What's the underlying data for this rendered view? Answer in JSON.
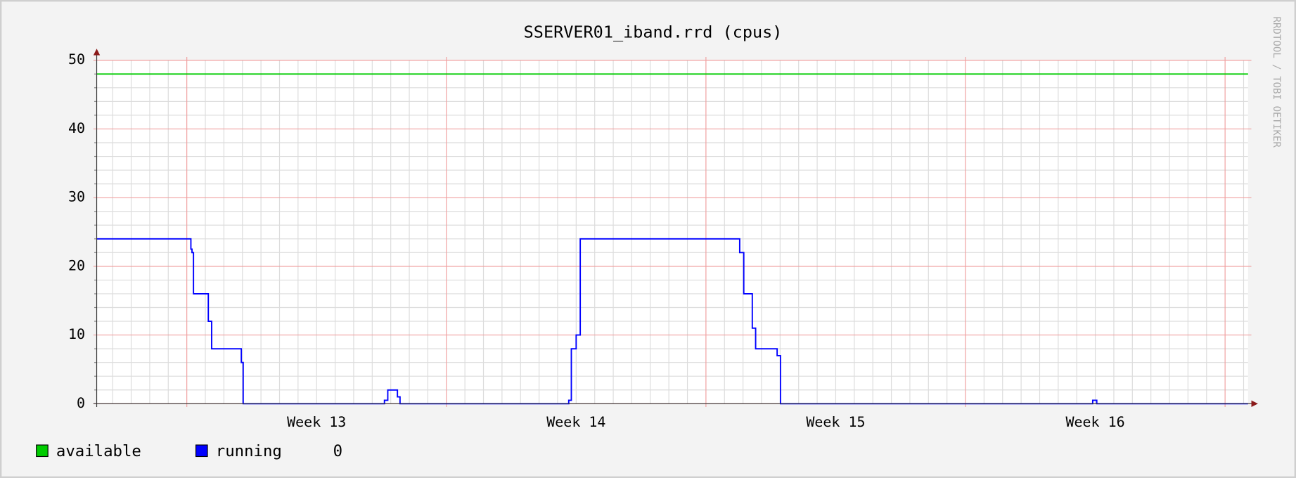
{
  "chart_data": {
    "type": "line",
    "title": "SSERVER01_iband.rrd (cpus)",
    "side_label": "RRDTOOL / TOBI OETIKER",
    "drawstyle": "steps-post",
    "xlim": [
      -2.43,
      28.62
    ],
    "ylim": [
      0,
      50
    ],
    "yticks": [
      0,
      10,
      20,
      30,
      40,
      50
    ],
    "yminorticks": [
      2,
      4,
      6,
      8,
      12,
      14,
      16,
      18,
      22,
      24,
      26,
      28,
      32,
      34,
      36,
      38,
      42,
      44,
      46,
      48
    ],
    "xticks": [
      {
        "value": 3.5,
        "label": "Week 13"
      },
      {
        "value": 10.5,
        "label": "Week 14"
      },
      {
        "value": 17.5,
        "label": "Week 15"
      },
      {
        "value": 24.5,
        "label": "Week 16"
      }
    ],
    "xmajorgrid": [
      0,
      7,
      14,
      21,
      28
    ],
    "xminorgrid": [
      -2,
      -1.5,
      -1,
      -0.5,
      0.5,
      1,
      1.5,
      2,
      2.5,
      3,
      3.5,
      4,
      4.5,
      5,
      5.5,
      6,
      6.5,
      7.5,
      8,
      8.5,
      9,
      9.5,
      10,
      10.5,
      11,
      11.5,
      12,
      12.5,
      13,
      13.5,
      14.5,
      15,
      15.5,
      16,
      16.5,
      17,
      17.5,
      18,
      18.5,
      19,
      19.5,
      20,
      20.5,
      21.5,
      22,
      22.5,
      23,
      23.5,
      24,
      24.5,
      25,
      25.5,
      26,
      26.5,
      27,
      27.5,
      28.5
    ],
    "grid": true,
    "series": [
      {
        "name": "available",
        "color": "#00cc00",
        "x": [
          -2.43,
          28.62
        ],
        "values": [
          48,
          48
        ]
      },
      {
        "name": "running",
        "color": "#0000ff",
        "last": 0,
        "x": [
          -2.43,
          0.11,
          0.14,
          0.18,
          0.58,
          0.67,
          1.47,
          1.52,
          5.33,
          5.42,
          5.68,
          5.75,
          10.3,
          10.37,
          10.5,
          10.61,
          14.91,
          15.02,
          15.25,
          15.34,
          15.92,
          16.01,
          24.43,
          24.54,
          28.62
        ],
        "values": [
          24,
          22.5,
          22,
          16,
          12,
          8,
          6,
          0,
          0.5,
          2,
          1,
          0,
          0.5,
          8,
          10,
          24,
          22,
          16,
          11,
          8,
          7,
          0,
          0.5,
          0,
          0
        ]
      }
    ]
  }
}
